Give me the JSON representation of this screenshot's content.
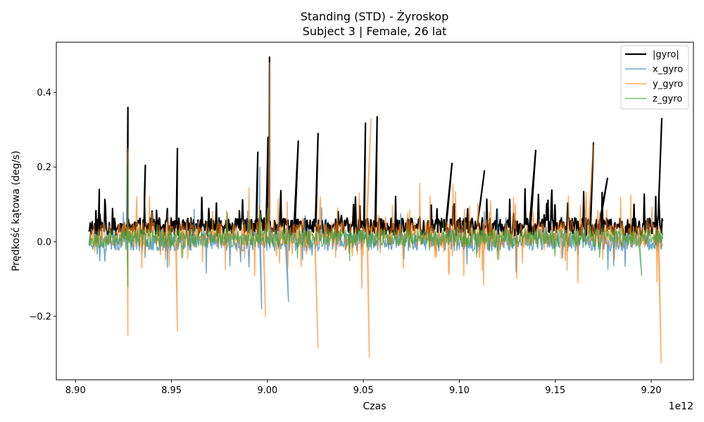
{
  "chart_data": {
    "type": "line",
    "title": "Standing (STD) - Żyroskop",
    "subtitle": "Subject 3 | Female, 26 lat",
    "xlabel": "Czas",
    "ylabel": "Prędkość kątowa (deg/s)",
    "x_offset_label": "1e12",
    "xlim": [
      8.89,
      9.222
    ],
    "ylim": [
      -0.37,
      0.535
    ],
    "x_ticks": [
      8.9,
      8.95,
      9.0,
      9.05,
      9.1,
      9.15,
      9.2
    ],
    "x_tick_labels": [
      "8.90",
      "8.95",
      "9.00",
      "9.05",
      "9.10",
      "9.15",
      "9.20"
    ],
    "y_ticks": [
      -0.2,
      0.0,
      0.2,
      0.4
    ],
    "y_tick_labels": [
      "−0.2",
      "0.0",
      "0.2",
      "0.4"
    ],
    "x_range": [
      8.907,
      9.206
    ],
    "legend_position": "top-right",
    "grid": false,
    "series": [
      {
        "name": "|gyro|",
        "color": "#000000",
        "baseline": 0.04,
        "peaks": [
          [
            9.0011,
            0.495
          ],
          [
            8.9273,
            0.36
          ],
          [
            9.0572,
            0.335
          ],
          [
            9.0511,
            0.318
          ],
          [
            9.2055,
            0.33
          ],
          [
            9.1699,
            0.265
          ],
          [
            8.9531,
            0.25
          ],
          [
            9.0264,
            0.29
          ],
          [
            9.0003,
            0.28
          ],
          [
            8.995,
            0.24
          ],
          [
            9.0161,
            0.27
          ],
          [
            9.1398,
            0.245
          ],
          [
            9.0962,
            0.21
          ],
          [
            9.1131,
            0.19
          ],
          [
            9.1772,
            0.17
          ],
          [
            8.9364,
            0.205
          ],
          [
            8.9124,
            0.14
          ]
        ]
      },
      {
        "name": "x_gyro",
        "color": "#1f77b4",
        "baseline": 0.005,
        "peaks": [
          [
            9.0011,
            0.48
          ],
          [
            8.996,
            0.2
          ],
          [
            8.9273,
            0.24
          ],
          [
            8.997,
            -0.18
          ],
          [
            9.011,
            -0.16
          ]
        ]
      },
      {
        "name": "y_gyro",
        "color": "#ff7f0e",
        "baseline": 0.02,
        "peaks": [
          [
            9.0011,
            0.48
          ],
          [
            8.9273,
            0.25
          ],
          [
            8.9273,
            -0.25
          ],
          [
            9.0531,
            -0.31
          ],
          [
            9.2052,
            -0.325
          ],
          [
            8.9531,
            -0.24
          ],
          [
            9.0264,
            -0.285
          ],
          [
            8.999,
            -0.2
          ],
          [
            9.054,
            0.33
          ],
          [
            9.1699,
            0.26
          ]
        ]
      },
      {
        "name": "z_gyro",
        "color": "#2ca02c",
        "baseline": 0.01,
        "peaks": [
          [
            8.9273,
            0.205
          ],
          [
            9.0,
            0.09
          ],
          [
            8.9273,
            -0.12
          ],
          [
            9.195,
            -0.09
          ]
        ]
      }
    ]
  }
}
